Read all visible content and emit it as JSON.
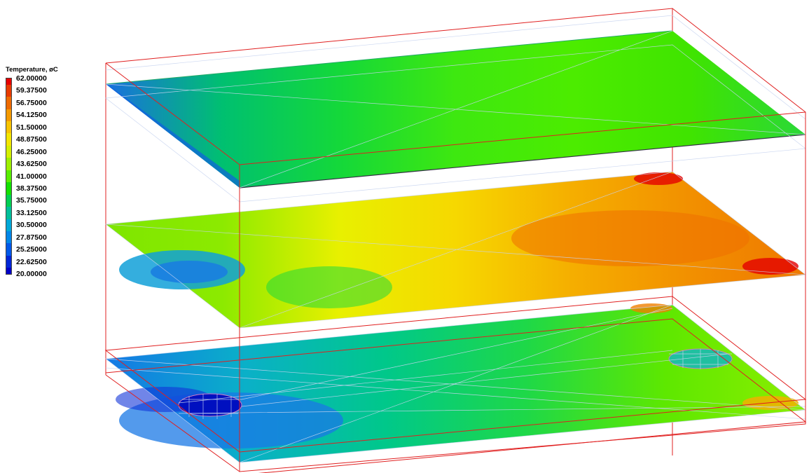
{
  "legend": {
    "title": "Temperature, øC",
    "labels": [
      "62.00000",
      "59.37500",
      "56.75000",
      "54.12500",
      "51.50000",
      "48.87500",
      "46.25000",
      "43.62500",
      "41.00000",
      "38.37500",
      "35.75000",
      "33.12500",
      "30.50000",
      "27.87500",
      "25.25000",
      "22.62500",
      "20.00000"
    ],
    "colors": [
      "#e60000",
      "#e83a00",
      "#ee6a00",
      "#f49a00",
      "#f8c400",
      "#f4e600",
      "#d4f000",
      "#9ef000",
      "#58ee00",
      "#14e000",
      "#00cf52",
      "#00bf9a",
      "#00a8d8",
      "#0086e8",
      "#0058e8",
      "#0026d6",
      "#0000c8"
    ]
  },
  "scene": {
    "frame_color": "#e02020",
    "mesh_color": "#c8d4f0",
    "top_plate": {
      "gradient": [
        "#1a6fe0",
        "#00c070",
        "#14d83a",
        "#3ee810",
        "#4cec00",
        "#40e400",
        "#2ad838"
      ]
    },
    "middle_plate": {
      "gradient": [
        "#7ee600",
        "#8cea00",
        "#e8f000",
        "#f6d800",
        "#f5ae00",
        "#f29000",
        "#ef7800"
      ]
    },
    "bottom_plate": {
      "gradient": [
        "#1478e6",
        "#0ab0c8",
        "#00c88a",
        "#1ed848",
        "#5ee800",
        "#8cee00"
      ]
    }
  }
}
